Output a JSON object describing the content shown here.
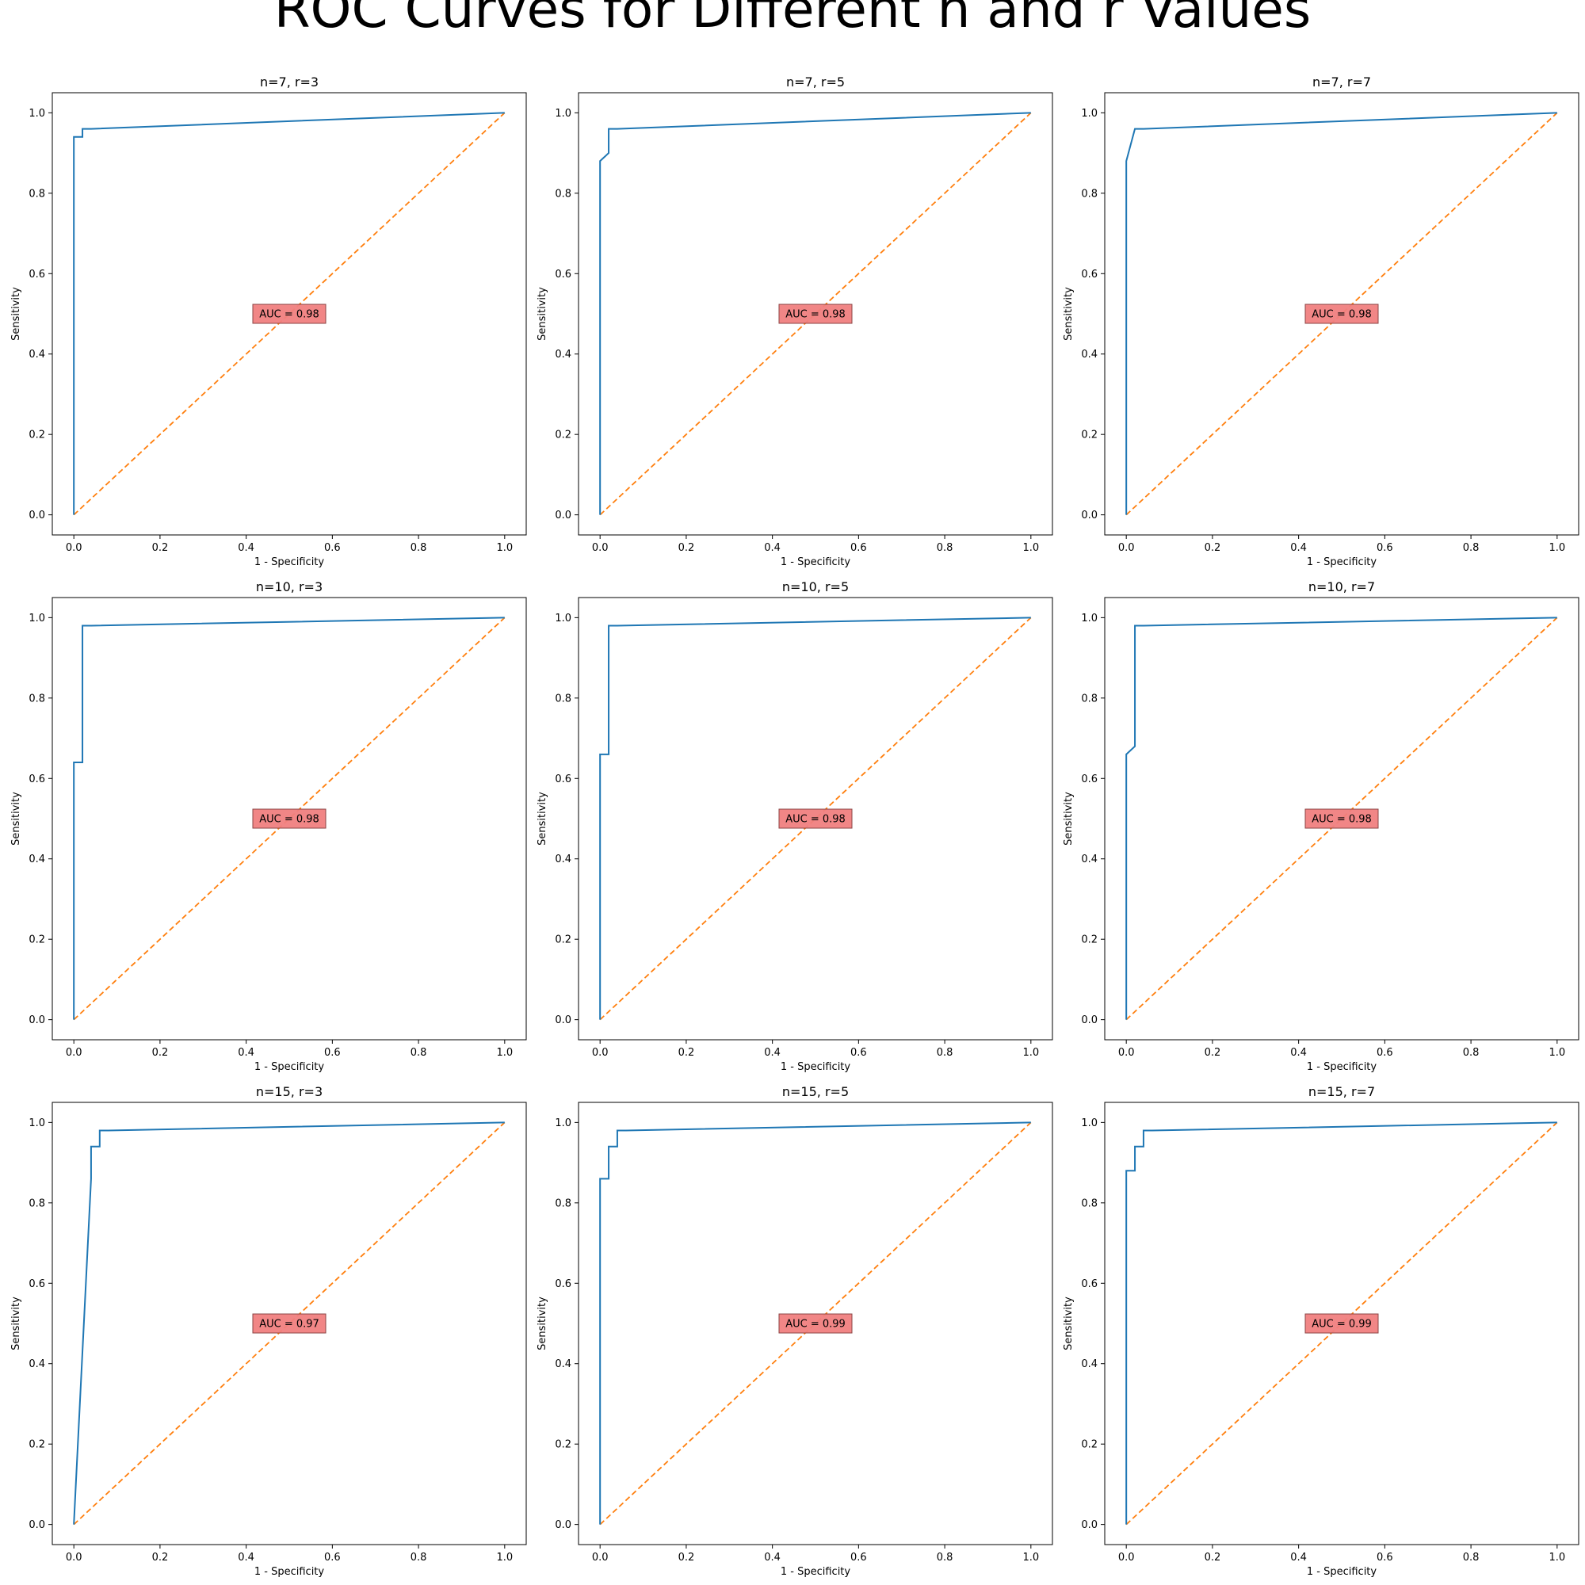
{
  "figure_title": "ROC Curves for Different n and r Values",
  "colors": {
    "roc": "#1f77b4",
    "diagonal": "#ff7f0e",
    "auc_box": "#f08080",
    "auc_box_edge": "#8b4444"
  },
  "chart_data": [
    {
      "type": "line",
      "title": "n=7, r=3",
      "xlabel": "1 - Specificity",
      "ylabel": "Sensitivity",
      "xlim": [
        -0.05,
        1.05
      ],
      "ylim": [
        -0.05,
        1.05
      ],
      "grid": false,
      "xticks": [
        "0.0",
        "0.2",
        "0.4",
        "0.6",
        "0.8",
        "1.0"
      ],
      "yticks": [
        "0.0",
        "0.2",
        "0.4",
        "0.6",
        "0.8",
        "1.0"
      ],
      "roc_x": [
        0,
        0,
        0.02,
        0.02,
        0.04,
        1
      ],
      "roc_y": [
        0,
        0.94,
        0.94,
        0.96,
        0.96,
        1.0
      ],
      "diagonal": [
        [
          0,
          0
        ],
        [
          1,
          1
        ]
      ],
      "auc_label": "AUC = 0.98",
      "auc_pos": [
        0.5,
        0.5
      ]
    },
    {
      "type": "line",
      "title": "n=7, r=5",
      "xlabel": "1 - Specificity",
      "ylabel": "Sensitivity",
      "xlim": [
        -0.05,
        1.05
      ],
      "ylim": [
        -0.05,
        1.05
      ],
      "grid": false,
      "xticks": [
        "0.0",
        "0.2",
        "0.4",
        "0.6",
        "0.8",
        "1.0"
      ],
      "yticks": [
        "0.0",
        "0.2",
        "0.4",
        "0.6",
        "0.8",
        "1.0"
      ],
      "roc_x": [
        0,
        0,
        0.02,
        0.02,
        0.04,
        1
      ],
      "roc_y": [
        0,
        0.88,
        0.9,
        0.96,
        0.96,
        1.0
      ],
      "diagonal": [
        [
          0,
          0
        ],
        [
          1,
          1
        ]
      ],
      "auc_label": "AUC = 0.98",
      "auc_pos": [
        0.5,
        0.5
      ]
    },
    {
      "type": "line",
      "title": "n=7, r=7",
      "xlabel": "1 - Specificity",
      "ylabel": "Sensitivity",
      "xlim": [
        -0.05,
        1.05
      ],
      "ylim": [
        -0.05,
        1.05
      ],
      "grid": false,
      "xticks": [
        "0.0",
        "0.2",
        "0.4",
        "0.6",
        "0.8",
        "1.0"
      ],
      "yticks": [
        "0.0",
        "0.2",
        "0.4",
        "0.6",
        "0.8",
        "1.0"
      ],
      "roc_x": [
        0,
        0,
        0.02,
        0.04,
        1
      ],
      "roc_y": [
        0,
        0.88,
        0.96,
        0.96,
        1.0
      ],
      "diagonal": [
        [
          0,
          0
        ],
        [
          1,
          1
        ]
      ],
      "auc_label": "AUC = 0.98",
      "auc_pos": [
        0.5,
        0.5
      ]
    },
    {
      "type": "line",
      "title": "n=10, r=3",
      "xlabel": "1 - Specificity",
      "ylabel": "Sensitivity",
      "xlim": [
        -0.05,
        1.05
      ],
      "ylim": [
        -0.05,
        1.05
      ],
      "grid": false,
      "xticks": [
        "0.0",
        "0.2",
        "0.4",
        "0.6",
        "0.8",
        "1.0"
      ],
      "yticks": [
        "0.0",
        "0.2",
        "0.4",
        "0.6",
        "0.8",
        "1.0"
      ],
      "roc_x": [
        0,
        0,
        0.02,
        0.02,
        0.04,
        1
      ],
      "roc_y": [
        0,
        0.64,
        0.64,
        0.98,
        0.98,
        1.0
      ],
      "diagonal": [
        [
          0,
          0
        ],
        [
          1,
          1
        ]
      ],
      "auc_label": "AUC = 0.98",
      "auc_pos": [
        0.5,
        0.5
      ]
    },
    {
      "type": "line",
      "title": "n=10, r=5",
      "xlabel": "1 - Specificity",
      "ylabel": "Sensitivity",
      "xlim": [
        -0.05,
        1.05
      ],
      "ylim": [
        -0.05,
        1.05
      ],
      "grid": false,
      "xticks": [
        "0.0",
        "0.2",
        "0.4",
        "0.6",
        "0.8",
        "1.0"
      ],
      "yticks": [
        "0.0",
        "0.2",
        "0.4",
        "0.6",
        "0.8",
        "1.0"
      ],
      "roc_x": [
        0,
        0,
        0.02,
        0.02,
        0.04,
        1
      ],
      "roc_y": [
        0,
        0.66,
        0.66,
        0.98,
        0.98,
        1.0
      ],
      "diagonal": [
        [
          0,
          0
        ],
        [
          1,
          1
        ]
      ],
      "auc_label": "AUC = 0.98",
      "auc_pos": [
        0.5,
        0.5
      ]
    },
    {
      "type": "line",
      "title": "n=10, r=7",
      "xlabel": "1 - Specificity",
      "ylabel": "Sensitivity",
      "xlim": [
        -0.05,
        1.05
      ],
      "ylim": [
        -0.05,
        1.05
      ],
      "grid": false,
      "xticks": [
        "0.0",
        "0.2",
        "0.4",
        "0.6",
        "0.8",
        "1.0"
      ],
      "yticks": [
        "0.0",
        "0.2",
        "0.4",
        "0.6",
        "0.8",
        "1.0"
      ],
      "roc_x": [
        0,
        0,
        0.02,
        0.02,
        0.04,
        1
      ],
      "roc_y": [
        0,
        0.66,
        0.68,
        0.98,
        0.98,
        1.0
      ],
      "diagonal": [
        [
          0,
          0
        ],
        [
          1,
          1
        ]
      ],
      "auc_label": "AUC = 0.98",
      "auc_pos": [
        0.5,
        0.5
      ]
    },
    {
      "type": "line",
      "title": "n=15, r=3",
      "xlabel": "1 - Specificity",
      "ylabel": "Sensitivity",
      "xlim": [
        -0.05,
        1.05
      ],
      "ylim": [
        -0.05,
        1.05
      ],
      "grid": false,
      "xticks": [
        "0.0",
        "0.2",
        "0.4",
        "0.6",
        "0.8",
        "1.0"
      ],
      "yticks": [
        "0.0",
        "0.2",
        "0.4",
        "0.6",
        "0.8",
        "1.0"
      ],
      "roc_x": [
        0,
        0.04,
        0.04,
        0.06,
        0.06,
        0.08,
        1
      ],
      "roc_y": [
        0,
        0.86,
        0.94,
        0.94,
        0.98,
        0.98,
        1.0
      ],
      "diagonal": [
        [
          0,
          0
        ],
        [
          1,
          1
        ]
      ],
      "auc_label": "AUC = 0.97",
      "auc_pos": [
        0.5,
        0.5
      ]
    },
    {
      "type": "line",
      "title": "n=15, r=5",
      "xlabel": "1 - Specificity",
      "ylabel": "Sensitivity",
      "xlim": [
        -0.05,
        1.05
      ],
      "ylim": [
        -0.05,
        1.05
      ],
      "grid": false,
      "xticks": [
        "0.0",
        "0.2",
        "0.4",
        "0.6",
        "0.8",
        "1.0"
      ],
      "yticks": [
        "0.0",
        "0.2",
        "0.4",
        "0.6",
        "0.8",
        "1.0"
      ],
      "roc_x": [
        0,
        0,
        0.02,
        0.02,
        0.04,
        0.04,
        0.06,
        1
      ],
      "roc_y": [
        0,
        0.86,
        0.86,
        0.94,
        0.94,
        0.98,
        0.98,
        1.0
      ],
      "diagonal": [
        [
          0,
          0
        ],
        [
          1,
          1
        ]
      ],
      "auc_label": "AUC = 0.99",
      "auc_pos": [
        0.5,
        0.5
      ]
    },
    {
      "type": "line",
      "title": "n=15, r=7",
      "xlabel": "1 - Specificity",
      "ylabel": "Sensitivity",
      "xlim": [
        -0.05,
        1.05
      ],
      "ylim": [
        -0.05,
        1.05
      ],
      "grid": false,
      "xticks": [
        "0.0",
        "0.2",
        "0.4",
        "0.6",
        "0.8",
        "1.0"
      ],
      "yticks": [
        "0.0",
        "0.2",
        "0.4",
        "0.6",
        "0.8",
        "1.0"
      ],
      "roc_x": [
        0,
        0,
        0.02,
        0.02,
        0.04,
        0.04,
        0.06,
        1
      ],
      "roc_y": [
        0,
        0.88,
        0.88,
        0.94,
        0.94,
        0.98,
        0.98,
        1.0
      ],
      "diagonal": [
        [
          0,
          0
        ],
        [
          1,
          1
        ]
      ],
      "auc_label": "AUC = 0.99",
      "auc_pos": [
        0.5,
        0.5
      ]
    }
  ]
}
